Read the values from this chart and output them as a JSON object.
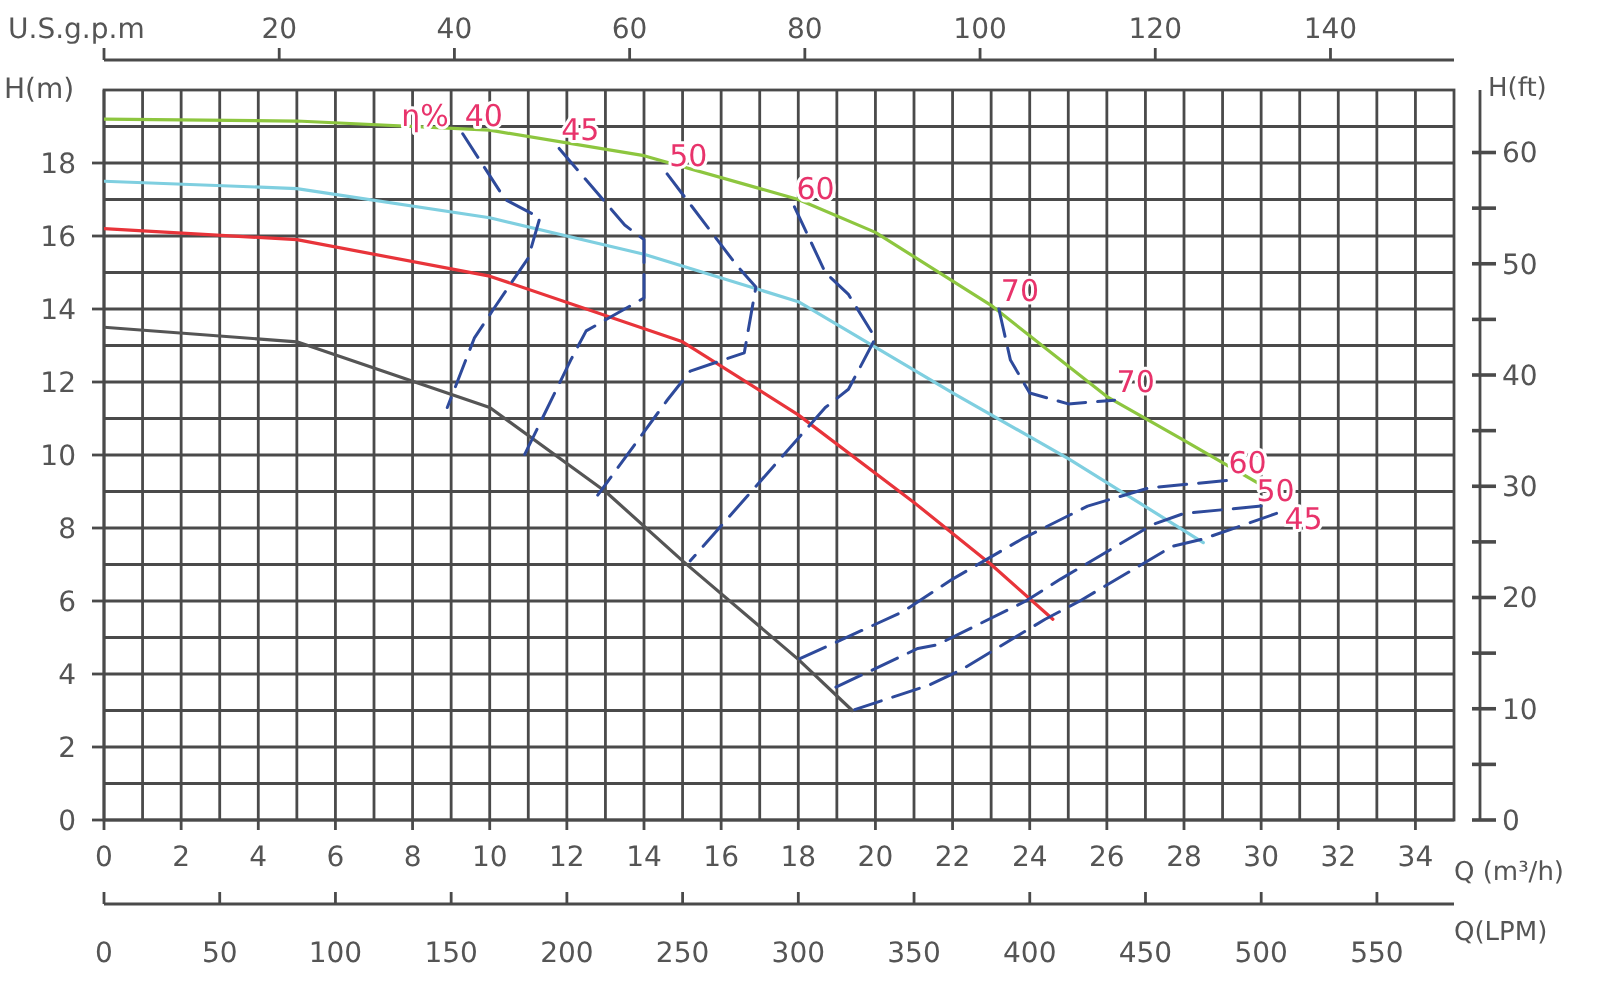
{
  "chart_data": {
    "type": "line",
    "xlabel": "Q (m³/h)",
    "ylabel": "H(m)",
    "y2label": "H(ft)",
    "x2label": "U.S.g.p.m",
    "xlim": [
      0,
      35
    ],
    "xticks": [
      0,
      2,
      4,
      6,
      8,
      10,
      12,
      14,
      16,
      18,
      20,
      22,
      24,
      26,
      28,
      30,
      32,
      34
    ],
    "ylim": [
      0,
      20
    ],
    "yticks": [
      0,
      2,
      4,
      6,
      8,
      10,
      12,
      14,
      16,
      18
    ],
    "y2lim": [
      0,
      65.62
    ],
    "y2ticks": [
      0,
      {
        "value": 5,
        "label": null
      },
      10,
      {
        "value": 15,
        "label": null
      },
      20,
      {
        "value": 25,
        "label": null
      },
      30,
      {
        "value": 35,
        "label": null
      },
      40,
      {
        "value": 45,
        "label": null
      },
      50,
      {
        "value": 55,
        "label": null
      },
      60
    ],
    "x2lim": [
      0,
      154.1
    ],
    "x2ticks": [
      {
        "value": 0,
        "label": null
      },
      20,
      40,
      60,
      80,
      100,
      120,
      140
    ],
    "grid": true,
    "marker": "none",
    "series": [
      {
        "color": "#8dc63f",
        "line_style": "solid",
        "x": [
          0,
          5,
          10,
          14,
          18,
          20,
          23,
          26,
          28,
          30.3
        ],
        "values": [
          19.2,
          19.15,
          18.9,
          18.2,
          17.0,
          16.1,
          14.1,
          11.6,
          10.4,
          9.0
        ]
      },
      {
        "color": "#7fcfe0",
        "line_style": "solid",
        "x": [
          0,
          5,
          10,
          14,
          18,
          22,
          25,
          28.5
        ],
        "values": [
          17.5,
          17.3,
          16.5,
          15.5,
          14.2,
          11.7,
          9.9,
          7.6
        ]
      },
      {
        "color": "#e8343a",
        "line_style": "solid",
        "x": [
          0,
          5,
          10,
          15,
          18,
          21,
          23,
          24.6
        ],
        "values": [
          16.2,
          15.9,
          14.9,
          13.1,
          11.1,
          8.7,
          7.0,
          5.5
        ]
      },
      {
        "color": "#555555",
        "line_style": "solid",
        "x": [
          0,
          5,
          10,
          13,
          15,
          18,
          19.4
        ],
        "values": [
          13.5,
          13.1,
          11.3,
          9.0,
          7.1,
          4.4,
          3.0
        ]
      },
      {
        "color": "#2e4a9b",
        "line_style": "dashed",
        "x": [
          9.3,
          10.4,
          11.3,
          11.0,
          10.1,
          9.6,
          8.9
        ],
        "values": [
          18.8,
          17.0,
          16.5,
          15.4,
          14.0,
          13.2,
          11.3
        ]
      },
      {
        "color": "#2e4a9b",
        "line_style": "dashed",
        "x": [
          11.8,
          13.5,
          14.0,
          14.0,
          12.5,
          12.1,
          10.9
        ],
        "values": [
          18.4,
          16.3,
          15.9,
          14.3,
          13.4,
          12.6,
          10.0
        ]
      },
      {
        "color": "#2e4a9b",
        "line_style": "dashed",
        "x": [
          14.6,
          16.4,
          16.9,
          16.6,
          15.2,
          14.6,
          12.8
        ],
        "values": [
          17.7,
          15.2,
          14.6,
          12.8,
          12.3,
          11.5,
          8.9
        ]
      },
      {
        "color": "#2e4a9b",
        "line_style": "dashed",
        "x": [
          17.9,
          18.7,
          19.3,
          20.0,
          19.3,
          18.7,
          15.2
        ],
        "values": [
          16.8,
          15.0,
          14.4,
          13.2,
          11.8,
          11.3,
          7.1
        ]
      },
      {
        "color": "#2e4a9b",
        "line_style": "dashed",
        "x": [
          23.2,
          23.5,
          24.0,
          25.0,
          26.2
        ],
        "values": [
          14.0,
          12.6,
          11.7,
          11.4,
          11.5
        ]
      },
      {
        "color": "#2e4a9b",
        "line_style": "dashed",
        "x": [
          29.1,
          27.1,
          25.5,
          23.8,
          22.0,
          20.7,
          18.0
        ],
        "values": [
          9.3,
          9.1,
          8.6,
          7.7,
          6.6,
          5.7,
          4.4
        ]
      },
      {
        "color": "#2e4a9b",
        "line_style": "dashed",
        "x": [
          30.0,
          28.0,
          27.2,
          24.8,
          23.9,
          21.6,
          21.1,
          18.9
        ],
        "values": [
          8.6,
          8.4,
          8.1,
          6.6,
          6.0,
          4.8,
          4.7,
          3.6
        ]
      },
      {
        "color": "#2e4a9b",
        "line_style": "dashed",
        "x": [
          30.4,
          28.5,
          27.7,
          25.3,
          24.4,
          22.2,
          21.4,
          19.4
        ],
        "values": [
          8.4,
          7.7,
          7.5,
          6.0,
          5.5,
          4.1,
          3.7,
          3.0
        ]
      }
    ],
    "annotations": [
      "η%",
      "Q(LPM)",
      "0",
      "50",
      "100",
      "150",
      "200",
      "250",
      "300",
      "350",
      "400",
      "450",
      "500",
      "550",
      {
        "text": "40",
        "x": 9.3,
        "y": 18.8
      },
      {
        "text": "45",
        "x": 11.8,
        "y": 18.4
      },
      {
        "text": "50",
        "x": 14.6,
        "y": 17.7
      },
      {
        "text": "60",
        "x": 17.9,
        "y": 16.8
      },
      {
        "text": "70",
        "x": 23.2,
        "y": 14.0
      },
      {
        "text": "70",
        "x": 26.2,
        "y": 11.5
      },
      {
        "text": "60",
        "x": 29.1,
        "y": 9.3
      },
      {
        "text": "50",
        "x": 30.0,
        "y": 8.6
      },
      {
        "text": "45",
        "x": 30.4,
        "y": 8.4
      }
    ]
  }
}
